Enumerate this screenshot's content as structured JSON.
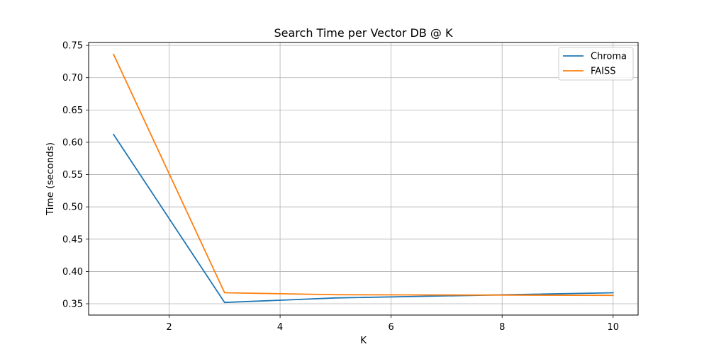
{
  "chart_data": {
    "type": "line",
    "title": "Search Time per Vector DB @ K",
    "xlabel": "K",
    "ylabel": "Time (seconds)",
    "x": [
      1,
      3,
      5,
      10
    ],
    "xlim": [
      0.55,
      10.45
    ],
    "ylim": [
      0.3325,
      0.7545
    ],
    "xticks": [
      2,
      4,
      6,
      8,
      10
    ],
    "xtick_labels": [
      "2",
      "4",
      "6",
      "8",
      "10"
    ],
    "yticks": [
      0.35,
      0.4,
      0.45,
      0.5,
      0.55,
      0.6,
      0.65,
      0.7,
      0.75
    ],
    "ytick_labels": [
      "0.35",
      "0.40",
      "0.45",
      "0.50",
      "0.55",
      "0.60",
      "0.65",
      "0.70",
      "0.75"
    ],
    "grid": true,
    "legend_position": "top-right",
    "series": [
      {
        "name": "Chroma",
        "color": "#1f77b4",
        "values": [
          0.612,
          0.352,
          0.359,
          0.367
        ]
      },
      {
        "name": "FAISS",
        "color": "#ff7f0e",
        "values": [
          0.736,
          0.367,
          0.364,
          0.363
        ]
      }
    ]
  }
}
